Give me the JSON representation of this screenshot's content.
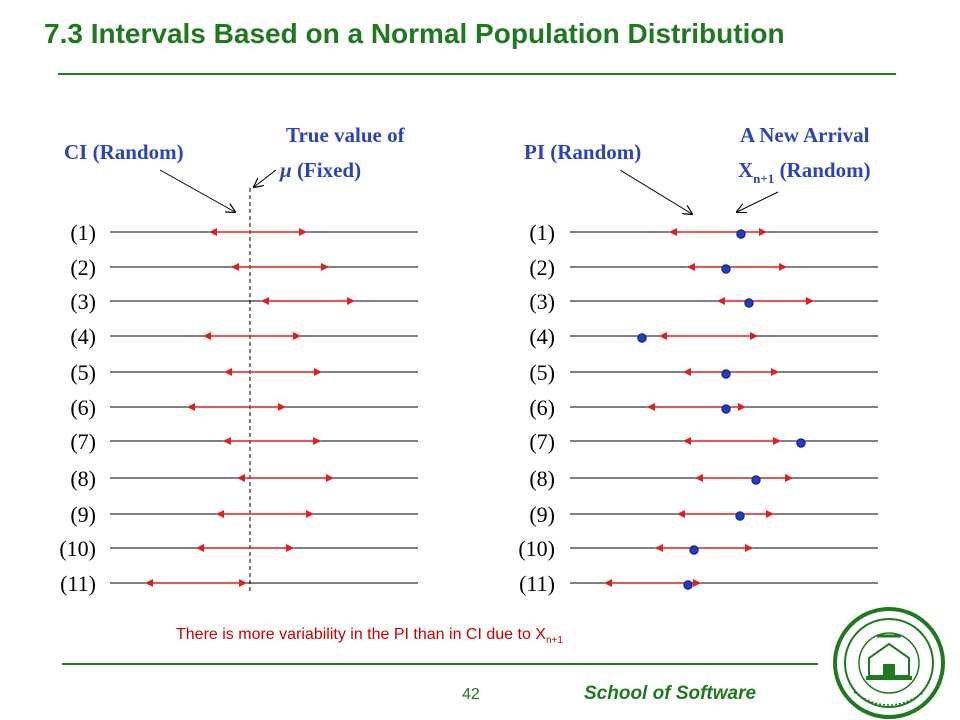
{
  "title": "7.3 Intervals Based on a Normal Population Distribution",
  "left_panel": {
    "label_ci": "CI (Random)",
    "label_true_line1": "True value of",
    "label_true_line2_mu": "μ",
    "label_true_line2_rest": " (Fixed)",
    "rows": [
      "(1)",
      "(2)",
      "(3)",
      "(4)",
      "(5)",
      "(6)",
      "(7)",
      "(8)",
      "(9)",
      "(10)",
      "(11)"
    ],
    "intervals": [
      [
        210,
        306
      ],
      [
        232,
        328
      ],
      [
        262,
        354
      ],
      [
        204,
        300
      ],
      [
        225,
        321
      ],
      [
        188,
        285
      ],
      [
        224,
        320
      ],
      [
        238,
        333
      ],
      [
        217,
        313
      ],
      [
        197,
        293
      ],
      [
        146,
        246
      ]
    ],
    "true_value_x": 250
  },
  "right_panel": {
    "label_pi": "PI (Random)",
    "label_arrival_line1": "A New Arrival",
    "label_arrival_x": "X",
    "label_arrival_sub": "n+1",
    "label_arrival_rest": " (Random)",
    "rows": [
      "(1)",
      "(2)",
      "(3)",
      "(4)",
      "(5)",
      "(6)",
      "(7)",
      "(8)",
      "(9)",
      "(10)",
      "(11)"
    ],
    "intervals": [
      [
        670,
        766
      ],
      [
        688,
        786
      ],
      [
        718,
        813
      ],
      [
        660,
        757
      ],
      [
        684,
        778
      ],
      [
        648,
        745
      ],
      [
        684,
        780
      ],
      [
        696,
        792
      ],
      [
        678,
        773
      ],
      [
        656,
        752
      ],
      [
        605,
        700
      ]
    ],
    "arrivals": [
      741,
      726,
      749,
      642,
      726,
      726,
      801,
      756,
      740,
      694,
      688
    ]
  },
  "note": {
    "text": "There is more variability in the PI than in CI due to X",
    "sub": "n+1"
  },
  "page_number": "42",
  "school": "School of Software",
  "logo_text": "SUN YAT-SEN UNIVERSITY",
  "colors": {
    "title": "#1f7a1f",
    "annotation": "#2b45b5",
    "interval": "#e02020",
    "dot": "#1f3fbf",
    "note": "#cc0000"
  }
}
